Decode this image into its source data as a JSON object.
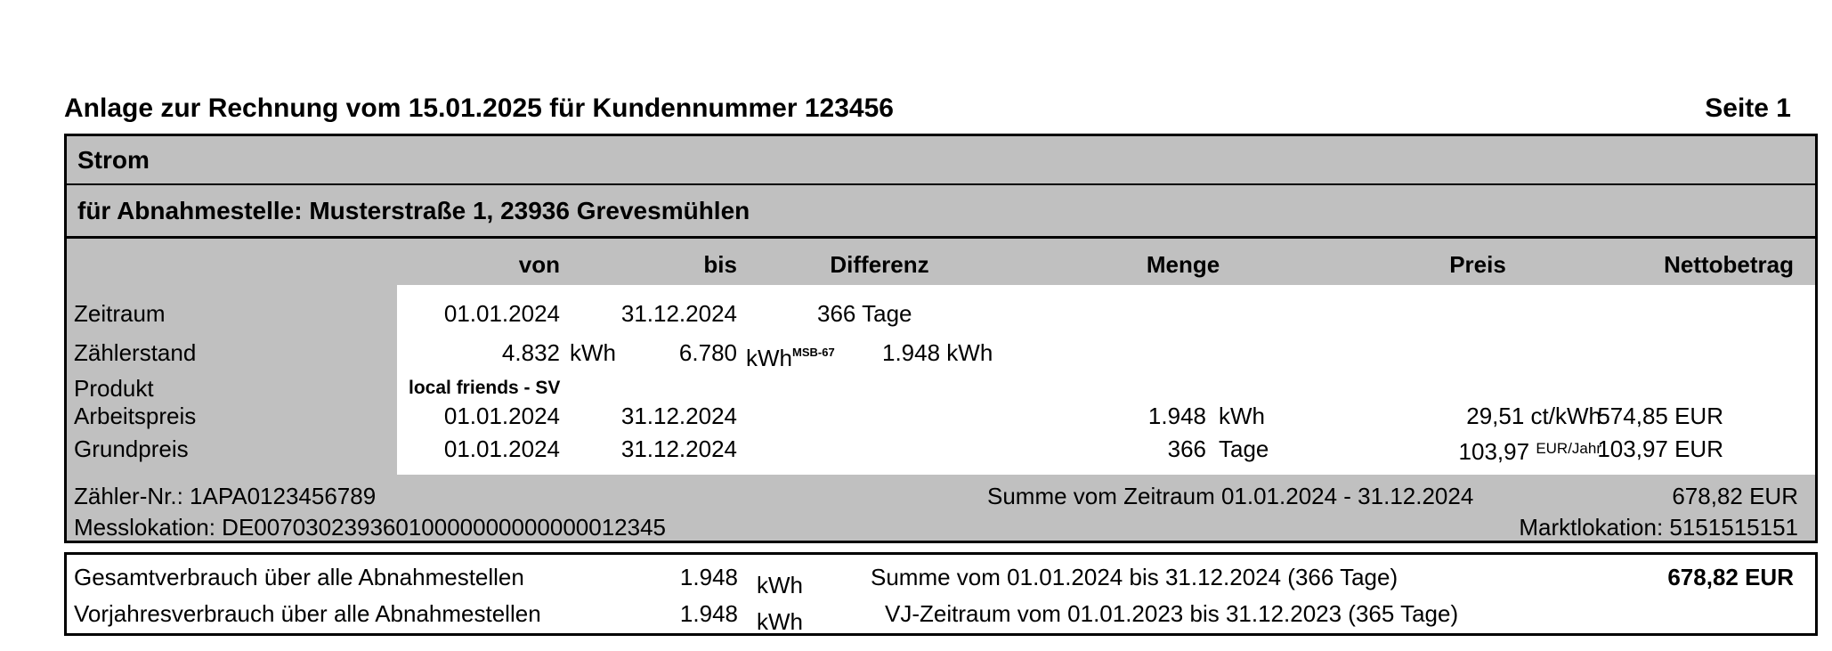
{
  "page": {
    "title": "Anlage zur Rechnung vom 15.01.2025 für Kundennummer 123456",
    "page_label": "Seite 1"
  },
  "section": {
    "product": "Strom",
    "delivery_point": "für Abnahmestelle: Musterstraße 1, 23936 Grevesmühlen"
  },
  "table": {
    "headers": {
      "von": "von",
      "bis": "bis",
      "differenz": "Differenz",
      "menge": "Menge",
      "preis": "Preis",
      "nettobetrag": "Nettobetrag"
    },
    "rows": {
      "zeitraum": {
        "label": "Zeitraum",
        "von": "01.01.2024",
        "bis": "31.12.2024",
        "differenz": "366 Tage"
      },
      "zaehlerstand": {
        "label": "Zählerstand",
        "von_value": "4.832",
        "von_unit": "kWh",
        "bis_value": "6.780",
        "bis_unit": "kWh",
        "bis_sup": "MSB-67",
        "differenz": "1.948 kWh"
      },
      "produkt": {
        "label": "Produkt",
        "value": "local friends - SV"
      },
      "arbeitspreis": {
        "label": "Arbeitspreis",
        "von": "01.01.2024",
        "bis": "31.12.2024",
        "menge_value": "1.948",
        "menge_unit": "kWh",
        "preis_value": "29,51",
        "preis_unit": "ct/kWh",
        "netto": "574,85 EUR"
      },
      "grundpreis": {
        "label": "Grundpreis",
        "von": "01.01.2024",
        "bis": "31.12.2024",
        "menge_value": "366",
        "menge_unit": "Tage",
        "preis_value": "103,97",
        "preis_unit": "EUR/Jahr",
        "netto": "103,97 EUR"
      }
    },
    "summary": {
      "zaehler_nr": "Zähler-Nr.: 1APA0123456789",
      "summe_label": "Summe vom Zeitraum 01.01.2024 - 31.12.2024",
      "summe_value": "678,82 EUR",
      "messlokation": "Messlokation: DE00703023936010000000000000012345",
      "marktlokation": "Marktlokation: 5151515151"
    }
  },
  "totals": {
    "rows": [
      {
        "label": "Gesamtverbrauch über alle Abnahmestellen",
        "value": "1.948",
        "unit": "kWh",
        "period": "Summe vom 01.01.2024 bis 31.12.2024 (366 Tage)",
        "amount": "678,82 EUR"
      },
      {
        "label": "Vorjahresverbrauch über alle Abnahmestellen",
        "value": "1.948",
        "unit": "kWh",
        "period": "VJ-Zeitraum vom 01.01.2023 bis 31.12.2023 (365 Tage)",
        "amount": ""
      }
    ]
  },
  "colors": {
    "band_gray": "#c0c0c0",
    "border": "#000000",
    "text": "#000000",
    "background": "#ffffff"
  }
}
